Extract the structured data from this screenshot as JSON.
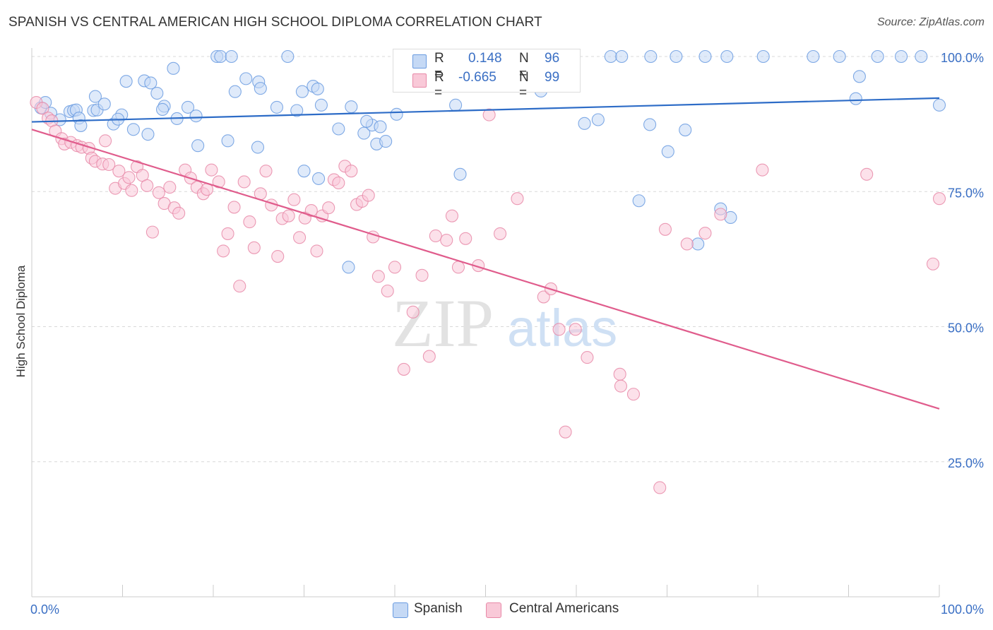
{
  "title": "SPANISH VS CENTRAL AMERICAN HIGH SCHOOL DIPLOMA CORRELATION CHART",
  "source": "Source: ZipAtlas.com",
  "watermark": {
    "zip": "ZIP",
    "atlas": "atlas"
  },
  "legend": {
    "r_label": "R =",
    "n_label": "N =",
    "rows": [
      {
        "r": "0.148",
        "n": "96",
        "fill": "#c5d9f5",
        "stroke": "#6a9be0"
      },
      {
        "r": "-0.665",
        "n": "99",
        "fill": "#f9c9d8",
        "stroke": "#e889a8"
      }
    ]
  },
  "chart_data": {
    "type": "scatter",
    "title": "SPANISH VS CENTRAL AMERICAN HIGH SCHOOL DIPLOMA CORRELATION CHART",
    "xlabel": "",
    "ylabel": "High School Diploma",
    "xlim": [
      0,
      100
    ],
    "ylim": [
      0,
      100
    ],
    "x_tick_labels": [
      "0.0%",
      "100.0%"
    ],
    "y_tick_labels": [
      "25.0%",
      "50.0%",
      "75.0%",
      "100.0%"
    ],
    "y_ticks": [
      25,
      50,
      75,
      100
    ],
    "grid": true,
    "legend_position": "top-center and bottom",
    "series": [
      {
        "name": "Spanish",
        "color": "#6a9be0",
        "fill": "#c5d9f5",
        "line_color": "#2d6cc7",
        "trend": {
          "x": [
            0,
            100
          ],
          "y": [
            87.9,
            92.3
          ]
        },
        "x": [
          1.0,
          1.5,
          2.1,
          3.1,
          4.2,
          4.6,
          4.9,
          5.2,
          5.4,
          6.8,
          7.2,
          9.0,
          9.9,
          10.4,
          12.4,
          13.1,
          13.8,
          14.6,
          14.4,
          16.0,
          15.6,
          17.2,
          18.1,
          20.4,
          20.8,
          22.0,
          22.4,
          23.6,
          25.0,
          25.2,
          27.0,
          28.2,
          29.2,
          29.8,
          31.0,
          31.5,
          31.9,
          33.8,
          35.2,
          36.6,
          37.5,
          38.4,
          41.1,
          41.3,
          42.9,
          44.2,
          49.0,
          49.6,
          51.8,
          52.2,
          53.8,
          55.0,
          57.5,
          63.8,
          65.0,
          68.2,
          71.0,
          74.2,
          76.6,
          80.6,
          86.1,
          89.0,
          90.8,
          91.2,
          93.2,
          95.8,
          98.0,
          100.0,
          7.0,
          8.0,
          9.5,
          11.2,
          12.8,
          18.3,
          21.6,
          24.9,
          30.0,
          31.6,
          34.9,
          36.9,
          38.0,
          39.0,
          40.2,
          46.7,
          47.2,
          48.0,
          56.1,
          60.9,
          62.4,
          68.1,
          72.0,
          73.4,
          77.0,
          70.1,
          66.9,
          75.9
        ],
        "y": [
          90.5,
          91.5,
          89.5,
          88.3,
          89.8,
          90.0,
          90.1,
          88.6,
          87.2,
          90.0,
          90.1,
          87.5,
          89.2,
          95.4,
          95.5,
          95.1,
          93.2,
          90.8,
          90.2,
          88.5,
          97.8,
          90.6,
          89.0,
          100.0,
          100.0,
          100.0,
          93.5,
          95.9,
          95.3,
          94.1,
          90.6,
          100.0,
          90.0,
          93.5,
          94.5,
          94.0,
          91.0,
          86.6,
          90.7,
          85.8,
          87.3,
          87.0,
          100.0,
          100.0,
          100.0,
          100.0,
          100.0,
          100.0,
          100.0,
          100.0,
          100.0,
          100.0,
          100.0,
          100.0,
          100.0,
          100.0,
          100.0,
          100.0,
          100.0,
          100.0,
          100.0,
          100.0,
          92.2,
          96.3,
          100.0,
          100.0,
          100.0,
          91.0,
          92.6,
          91.2,
          88.4,
          86.5,
          85.6,
          83.5,
          84.4,
          83.2,
          78.8,
          77.4,
          61.0,
          88.0,
          83.8,
          84.3,
          89.3,
          91.0,
          78.2,
          95.6,
          93.6,
          87.6,
          88.3,
          87.4,
          86.4,
          65.3,
          70.2,
          82.4,
          73.3,
          71.8
        ],
        "n": 96
      },
      {
        "name": "Central Americans",
        "color": "#e889a8",
        "fill": "#f9c9d8",
        "line_color": "#e05c8c",
        "trend": {
          "x": [
            0,
            100
          ],
          "y": [
            86.5,
            34.8
          ]
        },
        "x": [
          0.5,
          1.2,
          1.8,
          2.2,
          2.6,
          3.3,
          3.6,
          4.3,
          5.0,
          5.5,
          6.3,
          6.6,
          7.0,
          7.8,
          8.1,
          8.5,
          9.2,
          9.6,
          10.2,
          10.7,
          11.0,
          11.6,
          12.2,
          12.7,
          13.3,
          14.0,
          14.6,
          15.2,
          15.7,
          16.2,
          16.9,
          17.5,
          18.2,
          18.9,
          19.3,
          19.8,
          20.6,
          21.1,
          21.6,
          22.3,
          22.9,
          23.4,
          24.0,
          24.5,
          25.2,
          25.8,
          26.4,
          27.1,
          27.6,
          28.3,
          28.9,
          29.5,
          30.1,
          30.8,
          31.4,
          32.0,
          32.7,
          33.3,
          33.8,
          34.5,
          35.2,
          35.8,
          36.4,
          37.1,
          37.6,
          38.2,
          39.2,
          40.0,
          41.0,
          42.0,
          43.0,
          43.8,
          44.5,
          45.7,
          46.3,
          47.0,
          47.8,
          49.2,
          50.4,
          51.6,
          53.5,
          56.4,
          57.2,
          58.1,
          58.8,
          59.9,
          61.2,
          64.8,
          64.9,
          66.3,
          69.2,
          69.8,
          72.2,
          74.2,
          75.9,
          80.5,
          92.0,
          100.0,
          99.3
        ],
        "y": [
          91.5,
          90.4,
          88.6,
          88.1,
          86.2,
          84.8,
          83.8,
          84.1,
          83.5,
          83.2,
          83.0,
          81.2,
          80.6,
          80.1,
          84.4,
          80.0,
          75.6,
          78.8,
          76.5,
          77.6,
          75.2,
          79.6,
          78.0,
          76.1,
          67.5,
          74.8,
          72.8,
          75.8,
          72.0,
          71.0,
          79.0,
          77.5,
          75.8,
          74.6,
          75.4,
          79.0,
          76.8,
          64.0,
          67.2,
          72.1,
          57.5,
          76.8,
          69.4,
          64.6,
          74.6,
          78.8,
          72.5,
          63.0,
          70.0,
          70.5,
          73.5,
          66.5,
          70.1,
          71.5,
          64.0,
          70.5,
          72.0,
          77.2,
          76.6,
          79.7,
          78.8,
          72.6,
          73.2,
          74.3,
          66.6,
          59.3,
          56.6,
          61.0,
          42.1,
          52.7,
          59.5,
          44.5,
          66.8,
          66.0,
          70.5,
          61.0,
          66.3,
          61.3,
          89.2,
          67.2,
          73.7,
          55.5,
          57.0,
          49.5,
          30.5,
          49.5,
          44.3,
          41.2,
          39.0,
          37.5,
          20.2,
          68.0,
          65.3,
          67.3,
          70.8,
          79.0,
          78.2,
          73.7,
          61.6
        ],
        "n": 99
      }
    ]
  },
  "bottom_legend": [
    "Spanish",
    "Central Americans"
  ]
}
